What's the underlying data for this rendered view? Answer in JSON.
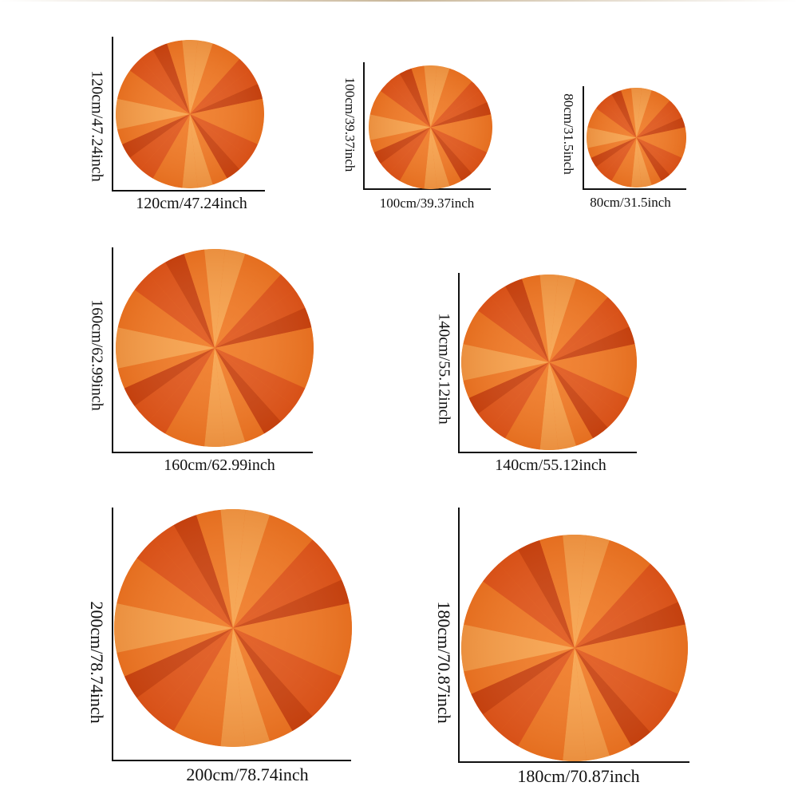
{
  "colors": {
    "light": "#f7a24a",
    "mid": "#f07a24",
    "deep": "#e0561a",
    "darkest": "#c8420f"
  },
  "rugs": [
    {
      "id": "rug-120",
      "width_label": "120cm/47.24inch",
      "height_label": "120cm/47.24inch"
    },
    {
      "id": "rug-100",
      "width_label": "100cm/39.37inch",
      "height_label": "100cm/39.37inch"
    },
    {
      "id": "rug-80",
      "width_label": "80cm/31.5inch",
      "height_label": "80cm/31.5inch"
    },
    {
      "id": "rug-160",
      "width_label": "160cm/62.99inch",
      "height_label": "160cm/62.99inch"
    },
    {
      "id": "rug-140",
      "width_label": "140cm/55.12inch",
      "height_label": "140cm/55.12inch"
    },
    {
      "id": "rug-200",
      "width_label": "200cm/78.74inch",
      "height_label": "200cm/78.74inch"
    },
    {
      "id": "rug-180",
      "width_label": "180cm/70.87inch",
      "height_label": "180cm/70.87inch"
    }
  ]
}
